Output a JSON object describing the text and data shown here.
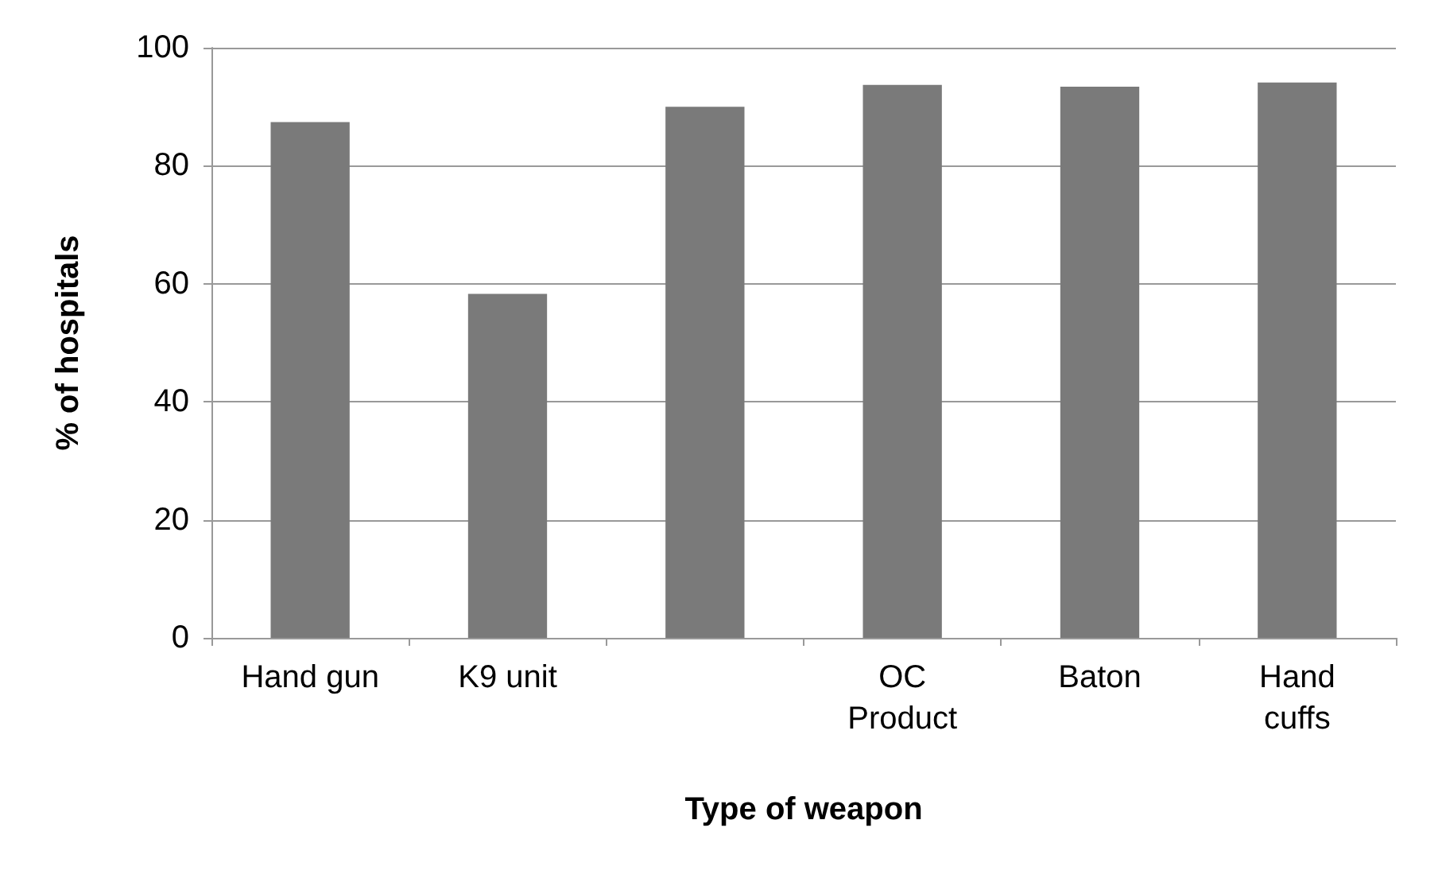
{
  "chart_data": {
    "type": "bar",
    "xlabel": "Type of weapon",
    "ylabel": "% of hospitals",
    "categories": [
      "Hand gun",
      "K9 unit",
      null,
      "OC\nProduct",
      "Baton",
      "Hand\ncuffs"
    ],
    "values": [
      87.4,
      58.3,
      90,
      93.7,
      93.4,
      94.1
    ],
    "color": "#7a7a7a",
    "ylim": [
      0,
      100
    ],
    "yticks": [
      0,
      20,
      40,
      60,
      80,
      100
    ],
    "grid": "y"
  }
}
